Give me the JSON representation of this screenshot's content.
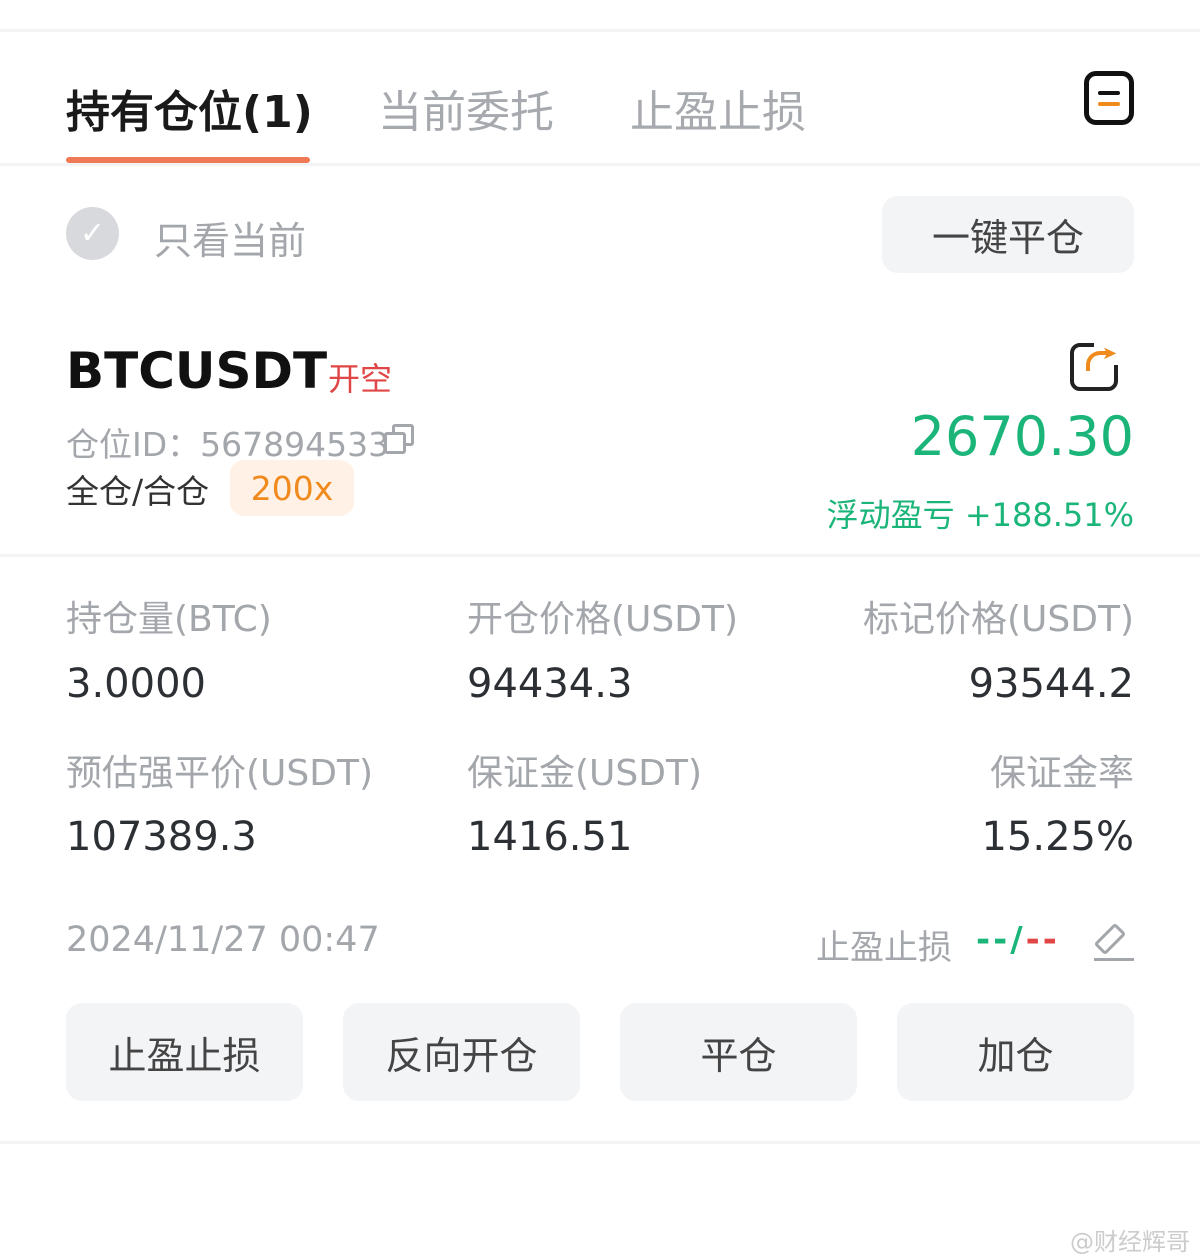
{
  "tabs": [
    {
      "label": "持有仓位(1)",
      "active": true
    },
    {
      "label": "当前委托"
    },
    {
      "label": "止盈止损"
    }
  ],
  "menu_icon": "list-menu-icon",
  "filter": {
    "label": "只看当前",
    "checked": false
  },
  "close_all_label": "一键平仓",
  "position": {
    "symbol": "BTCUSDT",
    "side": "开空",
    "id_label": "仓位ID：",
    "id": "567894533",
    "margin_mode": "全仓/合仓",
    "leverage": "200x",
    "pnl": "2670.30",
    "pnl_label": "浮动盈亏",
    "pnl_pct": "+188.51%",
    "fields": [
      {
        "label": "持仓量(BTC)",
        "value": "3.0000"
      },
      {
        "label": "开仓价格(USDT)",
        "value": "94434.3"
      },
      {
        "label": "标记价格(USDT)",
        "value": "93544.2"
      },
      {
        "label": "预估强平价(USDT)",
        "value": "107389.3"
      },
      {
        "label": "保证金(USDT)",
        "value": "1416.51"
      },
      {
        "label": "保证金率",
        "value": "15.25%"
      }
    ],
    "time": "2024/11/27 00:47",
    "tpsl_label": "止盈止损",
    "tp": "--",
    "sl": "--",
    "sep": "/"
  },
  "actions": [
    "止盈止损",
    "反向开仓",
    "平仓",
    "加仓"
  ],
  "watermark": "@财经辉哥",
  "colors": {
    "green": "#1bb57a",
    "red": "#e04646",
    "accent": "#f07a55",
    "orange": "#f08a1c"
  }
}
